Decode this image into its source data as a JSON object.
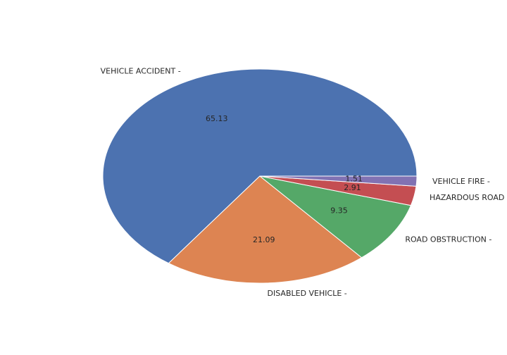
{
  "chart_data": {
    "type": "pie",
    "title": "",
    "categories": [
      "VEHICLE ACCIDENT -",
      "DISABLED VEHICLE -",
      "ROAD OBSTRUCTION -",
      "HAZARDOUS ROAD",
      "VEHICLE FIRE -"
    ],
    "values": [
      65.13,
      21.09,
      9.35,
      2.91,
      1.51
    ],
    "value_labels": [
      "65.13",
      "21.09",
      "9.35",
      "2.91",
      "1.51"
    ],
    "colors": [
      "#4c72b0",
      "#dd8452",
      "#55a868",
      "#c44e52",
      "#8172b3"
    ],
    "start_angle": "0° (3 o'clock)",
    "direction": "counterclockwise",
    "legend": "none"
  }
}
